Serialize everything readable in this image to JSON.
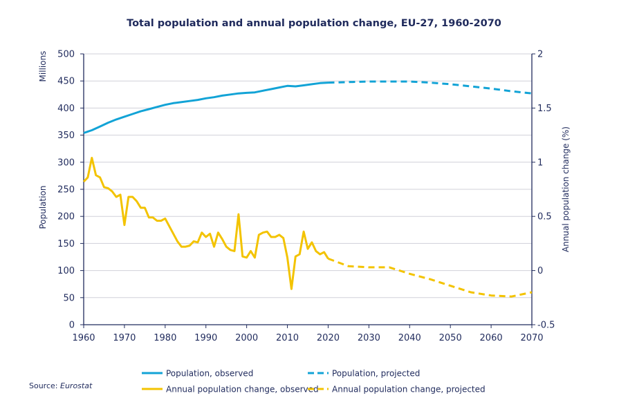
{
  "chart_data": {
    "type": "line",
    "title": "Total population and annual population change, EU-27, 1960-2070",
    "left_axis": {
      "unit_label": "Millions",
      "label": "Population",
      "ylim": [
        0,
        500
      ],
      "ticks": [
        "0",
        "50",
        "100",
        "150",
        "200",
        "250",
        "300",
        "350",
        "400",
        "450",
        "500"
      ]
    },
    "right_axis": {
      "label": "Annual population change (%)",
      "ylim": [
        -0.5,
        2
      ],
      "ticks": [
        "-0.5",
        "0",
        "0.5",
        "1",
        "1.5",
        "2"
      ]
    },
    "x_axis": {
      "xlim": [
        1960,
        2070
      ],
      "ticks": [
        "1960",
        "1970",
        "1980",
        "1990",
        "2000",
        "2010",
        "2020",
        "2030",
        "2040",
        "2050",
        "2060",
        "2070"
      ]
    },
    "grid": "horizontal",
    "series": [
      {
        "name": "Population, observed",
        "axis": "left",
        "color": "#12a3d6",
        "style": "solid",
        "x": [
          1960,
          1962,
          1964,
          1966,
          1968,
          1970,
          1972,
          1974,
          1976,
          1978,
          1980,
          1982,
          1984,
          1986,
          1988,
          1990,
          1992,
          1994,
          1996,
          1998,
          2000,
          2002,
          2004,
          2006,
          2008,
          2010,
          2012,
          2014,
          2016,
          2018,
          2020
        ],
        "values": [
          354,
          359,
          366,
          373,
          379,
          384,
          389,
          394,
          398,
          402,
          406,
          409,
          411,
          413,
          415,
          418,
          420,
          423,
          425,
          427,
          428,
          429,
          432,
          435,
          438,
          441,
          440,
          442,
          444,
          446,
          447
        ]
      },
      {
        "name": "Population, projected",
        "axis": "left",
        "color": "#12a3d6",
        "style": "dashed",
        "x": [
          2020,
          2025,
          2030,
          2035,
          2040,
          2045,
          2050,
          2055,
          2060,
          2065,
          2070
        ],
        "values": [
          447,
          448,
          449,
          449,
          449,
          447,
          444,
          440,
          436,
          431,
          427
        ]
      },
      {
        "name": "Annual population change, observed",
        "axis": "right",
        "color": "#f3c300",
        "style": "solid",
        "x": [
          1960,
          1961,
          1962,
          1963,
          1964,
          1965,
          1966,
          1967,
          1968,
          1969,
          1970,
          1971,
          1972,
          1973,
          1974,
          1975,
          1976,
          1977,
          1978,
          1979,
          1980,
          1981,
          1982,
          1983,
          1984,
          1985,
          1986,
          1987,
          1988,
          1989,
          1990,
          1991,
          1992,
          1993,
          1994,
          1995,
          1996,
          1997,
          1998,
          1999,
          2000,
          2001,
          2002,
          2003,
          2004,
          2005,
          2006,
          2007,
          2008,
          2009,
          2010,
          2011,
          2012,
          2013,
          2014,
          2015,
          2016,
          2017,
          2018,
          2019,
          2020
        ],
        "values": [
          0.82,
          0.86,
          1.04,
          0.88,
          0.86,
          0.77,
          0.76,
          0.73,
          0.68,
          0.7,
          0.42,
          0.68,
          0.68,
          0.64,
          0.58,
          0.58,
          0.49,
          0.49,
          0.46,
          0.46,
          0.48,
          0.41,
          0.34,
          0.27,
          0.22,
          0.22,
          0.23,
          0.27,
          0.26,
          0.35,
          0.31,
          0.34,
          0.22,
          0.35,
          0.29,
          0.22,
          0.19,
          0.18,
          0.52,
          0.13,
          0.12,
          0.18,
          0.12,
          0.33,
          0.35,
          0.36,
          0.31,
          0.31,
          0.33,
          0.3,
          0.12,
          -0.17,
          0.13,
          0.15,
          0.36,
          0.2,
          0.26,
          0.18,
          0.15,
          0.17,
          0.11
        ]
      },
      {
        "name": "Annual population change, projected",
        "axis": "right",
        "color": "#f3c300",
        "style": "dashed",
        "x": [
          2020,
          2025,
          2030,
          2035,
          2040,
          2045,
          2050,
          2055,
          2060,
          2065,
          2070
        ],
        "values": [
          0.11,
          0.04,
          0.03,
          0.03,
          -0.03,
          -0.08,
          -0.14,
          -0.2,
          -0.23,
          -0.24,
          -0.2
        ]
      }
    ],
    "legend": [
      "Population, observed",
      "Population, projected",
      "Annual population change, observed",
      "Annual population change, projected"
    ],
    "legend_position": "bottom"
  },
  "source": {
    "label": "Source:",
    "name": "Eurostat"
  }
}
